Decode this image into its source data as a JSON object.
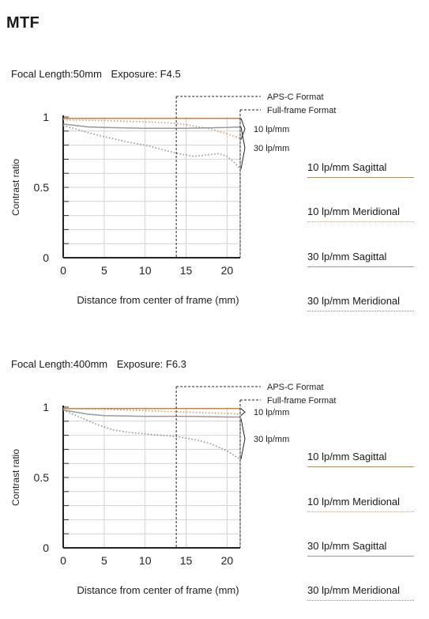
{
  "page": {
    "title": "MTF"
  },
  "legend_items": [
    {
      "label": "10 lp/mm Sagittal",
      "color": "#c8843f",
      "style": "solid"
    },
    {
      "label": "10 lp/mm Meridional",
      "color": "#d0956a",
      "style": "dotted"
    },
    {
      "label": "30 lp/mm Sagittal",
      "color": "#999999",
      "style": "solid"
    },
    {
      "label": "30 lp/mm Meridional",
      "color": "#8f8f8f",
      "style": "dotted"
    }
  ],
  "chart_data": [
    {
      "type": "line",
      "caption": {
        "focal": "Focal Length:50mm",
        "exposure": "Exposure: F4.5"
      },
      "xlabel": "Distance from center of frame (mm)",
      "ylabel": "Contrast ratio",
      "xlim": [
        0,
        21.6
      ],
      "ylim": [
        0,
        1
      ],
      "x_ticks": [
        0,
        5,
        10,
        15,
        20
      ],
      "y_tick_labels": [
        {
          "value": 1,
          "label": "1"
        },
        {
          "value": 0.5,
          "label": "0.5"
        },
        {
          "value": 0,
          "label": "0"
        }
      ],
      "grid": true,
      "format_markers": [
        {
          "label": "APS-C Format",
          "x": 13.8
        },
        {
          "label": "Full-frame Format",
          "x": 21.6
        }
      ],
      "frequency_brackets": [
        {
          "label": "10 lp/mm",
          "range": [
            0.84,
            0.99
          ]
        },
        {
          "label": "30 lp/mm",
          "range": [
            0.63,
            0.93
          ]
        }
      ],
      "series": [
        {
          "name": "10 lp/mm Sagittal",
          "x": [
            0,
            5,
            10,
            15,
            20,
            21.6
          ],
          "values": [
            0.99,
            0.99,
            0.99,
            0.99,
            0.99,
            0.99
          ]
        },
        {
          "name": "10 lp/mm Meridional",
          "x": [
            0,
            5,
            10,
            13.8,
            15,
            18,
            20,
            21.6
          ],
          "values": [
            0.98,
            0.975,
            0.965,
            0.955,
            0.945,
            0.915,
            0.88,
            0.85
          ]
        },
        {
          "name": "30 lp/mm Sagittal",
          "x": [
            0,
            3,
            5,
            10,
            15,
            20,
            21.6
          ],
          "values": [
            0.95,
            0.93,
            0.925,
            0.92,
            0.92,
            0.925,
            0.93
          ]
        },
        {
          "name": "30 lp/mm Meridional",
          "x": [
            0,
            3,
            5,
            8,
            10,
            12,
            14,
            16,
            17.5,
            19,
            20,
            21,
            21.6
          ],
          "values": [
            0.94,
            0.89,
            0.86,
            0.82,
            0.8,
            0.77,
            0.74,
            0.72,
            0.73,
            0.74,
            0.72,
            0.67,
            0.63
          ]
        }
      ]
    },
    {
      "type": "line",
      "caption": {
        "focal": "Focal Length:400mm",
        "exposure": "Exposure: F6.3"
      },
      "xlabel": "Distance from center of frame (mm)",
      "ylabel": "Contrast ratio",
      "xlim": [
        0,
        21.6
      ],
      "ylim": [
        0,
        1
      ],
      "x_ticks": [
        0,
        5,
        10,
        15,
        20
      ],
      "y_tick_labels": [
        {
          "value": 1,
          "label": "1"
        },
        {
          "value": 0.5,
          "label": "0.5"
        },
        {
          "value": 0,
          "label": "0"
        }
      ],
      "grid": true,
      "format_markers": [
        {
          "label": "APS-C Format",
          "x": 13.8
        },
        {
          "label": "Full-frame Format",
          "x": 21.6
        }
      ],
      "frequency_brackets": [
        {
          "label": "10 lp/mm",
          "range": [
            0.94,
            0.99
          ]
        },
        {
          "label": "30 lp/mm",
          "range": [
            0.63,
            0.92
          ]
        }
      ],
      "series": [
        {
          "name": "10 lp/mm Sagittal",
          "x": [
            0,
            5,
            10,
            15,
            20,
            21.6
          ],
          "values": [
            0.99,
            0.99,
            0.99,
            0.99,
            0.99,
            0.99
          ]
        },
        {
          "name": "10 lp/mm Meridional",
          "x": [
            0,
            5,
            10,
            15,
            20,
            21.6
          ],
          "values": [
            0.99,
            0.985,
            0.975,
            0.965,
            0.955,
            0.95
          ]
        },
        {
          "name": "30 lp/mm Sagittal",
          "x": [
            0,
            3,
            5,
            10,
            15,
            20,
            21.6
          ],
          "values": [
            0.98,
            0.95,
            0.94,
            0.935,
            0.935,
            0.93,
            0.93
          ]
        },
        {
          "name": "30 lp/mm Meridional",
          "x": [
            0,
            2,
            4,
            6,
            8,
            10,
            12,
            14,
            16,
            18,
            20,
            21.6
          ],
          "values": [
            0.98,
            0.93,
            0.88,
            0.84,
            0.82,
            0.81,
            0.8,
            0.79,
            0.77,
            0.74,
            0.69,
            0.63
          ]
        }
      ]
    }
  ]
}
